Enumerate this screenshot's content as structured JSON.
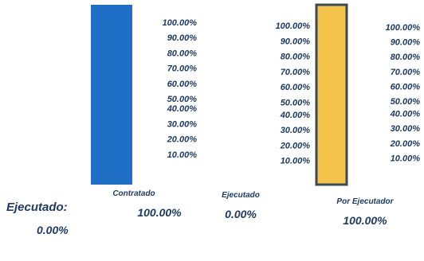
{
  "chart_data": {
    "type": "bar",
    "charts": [
      {
        "category": "Contratado",
        "value": 100,
        "value_label": "100.00%",
        "color": "#1f6fc6",
        "ylim": [
          0,
          100
        ]
      },
      {
        "category": "Ejecutado",
        "value": 0,
        "value_label": "0.00%",
        "color": "#1f6fc6",
        "ylim": [
          0,
          100
        ]
      },
      {
        "category": "Por Ejecutador",
        "value": 100,
        "value_label": "100.00%",
        "color": "#f3c34b",
        "ylim": [
          0,
          100
        ]
      }
    ],
    "tick_labels": [
      "100.00%",
      "90.00%",
      "80.00%",
      "70.00%",
      "60.00%",
      "50.00%",
      "40.00%",
      "30.00%",
      "20.00%",
      "10.00%"
    ]
  },
  "summary": {
    "label": "Ejecutado:",
    "value": "0.00%"
  }
}
